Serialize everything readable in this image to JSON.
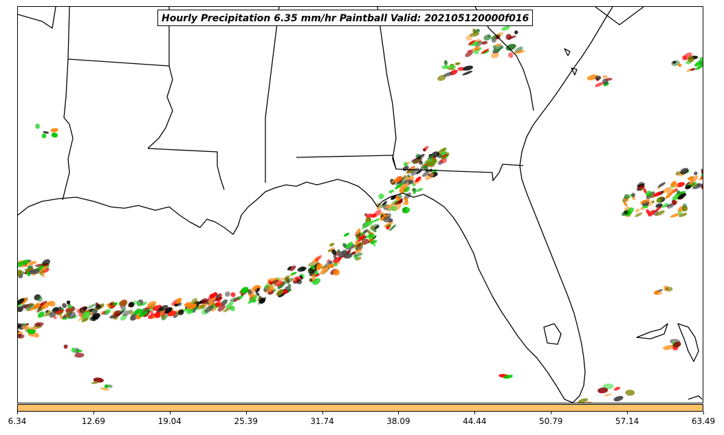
{
  "map": {
    "title": "Hourly Precipitation 6.35 mm/hr Paintball Valid: 202105120000f016",
    "member_colors": [
      "#ff0000",
      "#ff7f00",
      "#8b0000",
      "#00c800",
      "#2e7d32",
      "#808000",
      "#000000",
      "#ff9933",
      "#33dd33",
      "#4d4d4d"
    ],
    "colorbar": {
      "color": "#ffc266",
      "ticks": [
        "6.34",
        "12.69",
        "19.04",
        "25.39",
        "31.74",
        "38.09",
        "44.44",
        "50.79",
        "57.14",
        "63.49"
      ]
    }
  }
}
